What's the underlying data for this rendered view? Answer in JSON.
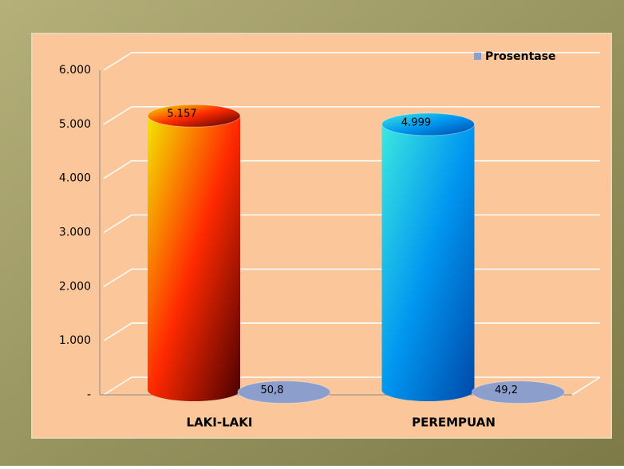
{
  "chart_data": {
    "type": "cylinder",
    "categories": [
      "LAKI-LAKI",
      "PEREMPUAN"
    ],
    "series": [
      {
        "colors": [
          [
            "#f2e600",
            "#ff2a00",
            "#4a0000"
          ],
          [
            "#3ce8e0",
            "#0096f0",
            "#0048a8"
          ]
        ],
        "values": [
          5157,
          4999
        ],
        "value_labels": [
          "5.157",
          "4.999"
        ]
      },
      {
        "name": "Prosentase",
        "color": "#8c9ecb",
        "values": [
          50.8,
          49.2
        ],
        "value_labels": [
          "50,8",
          "49,2"
        ]
      }
    ],
    "ylim": [
      0,
      6000
    ],
    "yticks": [
      {
        "value": 0,
        "label": "-"
      },
      {
        "value": 1000,
        "label": "1.000"
      },
      {
        "value": 2000,
        "label": "2.000"
      },
      {
        "value": 3000,
        "label": "3.000"
      },
      {
        "value": 4000,
        "label": "4.000"
      },
      {
        "value": 5000,
        "label": "5.000"
      },
      {
        "value": 6000,
        "label": "6.000"
      }
    ],
    "grid": true,
    "legend": "top-right"
  }
}
